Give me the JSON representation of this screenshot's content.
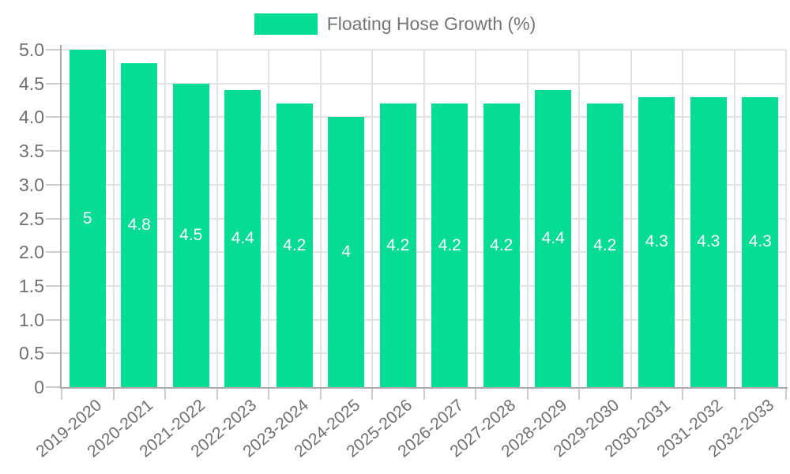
{
  "legend": {
    "label": "Floating Hose Growth (%)"
  },
  "colors": {
    "bar": "#06dc92",
    "grid": "#e3e3e3",
    "axis": "#aaaaaa",
    "tick": "#cccccc",
    "tick_text": "#6f6f6f",
    "legend_text": "#757575",
    "bar_label_text": "#ffffff",
    "background": "#ffffff"
  },
  "chart_data": {
    "type": "bar",
    "title": "Floating Hose Growth (%)",
    "categories": [
      "2019-2020",
      "2020-2021",
      "2021-2022",
      "2022-2023",
      "2023-2024",
      "2024-2025",
      "2025-2026",
      "2026-2027",
      "2027-2028",
      "2028-2029",
      "2029-2030",
      "2030-2031",
      "2031-2032",
      "2032-2033"
    ],
    "values": [
      5,
      4.8,
      4.5,
      4.4,
      4.2,
      4,
      4.2,
      4.2,
      4.2,
      4.4,
      4.2,
      4.3,
      4.3,
      4.3
    ],
    "value_labels": [
      "5",
      "4.8",
      "4.5",
      "4.4",
      "4.2",
      "4",
      "4.2",
      "4.2",
      "4.2",
      "4.4",
      "4.2",
      "4.3",
      "4.3",
      "4.3"
    ],
    "y_ticks": [
      "5.0",
      "4.5",
      "4.0",
      "3.5",
      "3.0",
      "2.5",
      "2.0",
      "1.5",
      "1.0",
      "0.5",
      "0"
    ],
    "xlabel": "",
    "ylabel": "",
    "ylim": [
      0,
      5
    ],
    "y_tick_step": 0.5,
    "grid": true,
    "legend_position": "top-center",
    "bar_label_position": "middle"
  }
}
